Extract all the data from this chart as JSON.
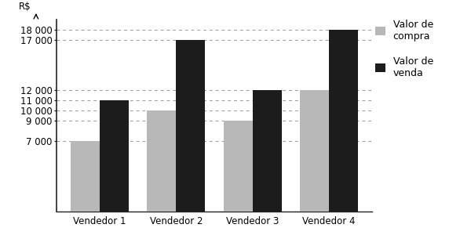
{
  "categories": [
    "Vendedor 1",
    "Vendedor 2",
    "Vendedor 3",
    "Vendedor 4"
  ],
  "compra": [
    7000,
    10000,
    9000,
    12000
  ],
  "venda": [
    11000,
    17000,
    12000,
    18000
  ],
  "bar_color_compra": "#b8b8b8",
  "bar_color_venda": "#1c1c1c",
  "yticks": [
    7000,
    9000,
    10000,
    11000,
    12000,
    17000,
    18000
  ],
  "ytick_labels": [
    "7 000",
    "9 000",
    "10 000",
    "11 000",
    "12 000",
    "17 000",
    "18 000"
  ],
  "ylim": [
    0,
    19000
  ],
  "legend_compra": "Valor de\ncompra",
  "legend_venda": "Valor de\nvenda",
  "background_color": "#ffffff",
  "bar_width": 0.38,
  "grid_color": "#999999",
  "tick_fontsize": 8.5,
  "legend_fontsize": 9
}
